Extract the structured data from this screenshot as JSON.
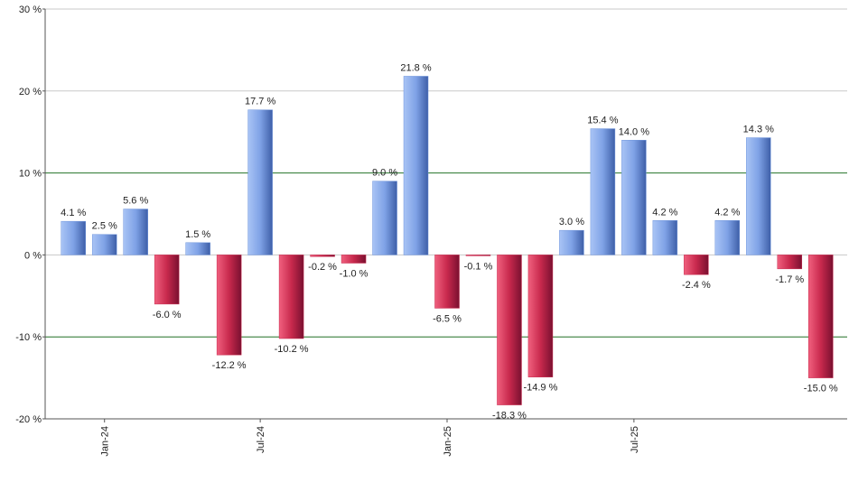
{
  "chart_data": {
    "type": "bar",
    "categories": [
      null,
      "Jan-24",
      null,
      null,
      null,
      null,
      "Jul-24",
      null,
      null,
      null,
      null,
      null,
      "Jan-25",
      null,
      null,
      null,
      null,
      null,
      "Jul-25",
      null,
      null,
      null,
      null,
      null,
      null
    ],
    "values": [
      4.1,
      2.5,
      5.6,
      -6.0,
      1.5,
      -12.2,
      17.7,
      -10.2,
      -0.2,
      -1.0,
      9.0,
      21.8,
      -6.5,
      -0.1,
      -18.3,
      -14.9,
      3.0,
      15.4,
      14.0,
      4.2,
      -2.4,
      4.2,
      14.3,
      -1.7,
      -15.0
    ],
    "value_labels": [
      "4.1 %",
      "2.5 %",
      "5.6 %",
      "-6.0 %",
      "1.5 %",
      "-12.2 %",
      "17.7 %",
      "-10.2 %",
      "-0.2 %",
      "-1.0 %",
      "9.0 %",
      "21.8 %",
      "-6.5 %",
      "-0.1 %",
      "-18.3 %",
      "-14.9 %",
      "3.0 %",
      "15.4 %",
      "14.0 %",
      "4.2 %",
      "-2.4 %",
      "4.2 %",
      "14.3 %",
      "-1.7 %",
      "-15.0 %"
    ],
    "positive_color": "#6f95dc",
    "negative_color": "#c8294d",
    "ylim": [
      -20,
      30
    ],
    "yticks": [
      {
        "value": -20,
        "label": "-20 %"
      },
      {
        "value": -10,
        "label": "-10 %"
      },
      {
        "value": 0,
        "label": "0 %"
      },
      {
        "value": 10,
        "label": "10 %"
      },
      {
        "value": 20,
        "label": "20 %"
      },
      {
        "value": 30,
        "label": "30 %"
      }
    ],
    "grid": true,
    "grid_color": "#c8c8c8",
    "reference_lines": {
      "values": [
        10,
        -10
      ],
      "color": "#2e7d32"
    }
  }
}
